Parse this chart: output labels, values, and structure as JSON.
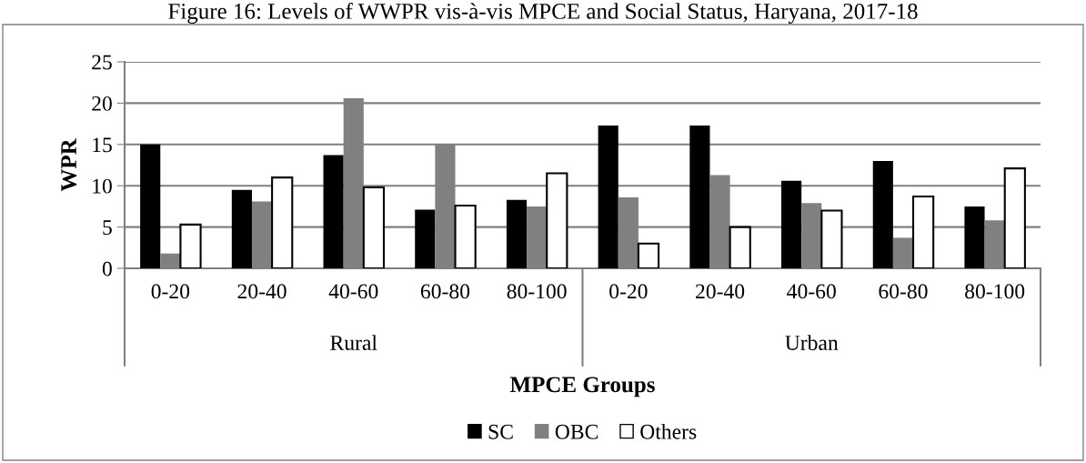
{
  "chart_data": {
    "type": "bar",
    "title": "Figure 16: Levels of WWPR vis-à-vis MPCE and Social Status, Haryana, 2017-18",
    "xlabel": "MPCE Groups",
    "ylabel": "WPR",
    "categories": [
      "0-20",
      "20-40",
      "40-60",
      "60-80",
      "80-100",
      "0-20",
      "20-40",
      "40-60",
      "60-80",
      "80-100"
    ],
    "annotations": [
      "Rural",
      "Urban"
    ],
    "series": [
      {
        "name": "SC",
        "color": "#000000",
        "values": [
          15,
          9.5,
          13.7,
          7.1,
          8.3,
          17.3,
          17.3,
          10.6,
          13,
          7.5
        ]
      },
      {
        "name": "OBC",
        "color": "#808080",
        "values": [
          1.8,
          8.1,
          20.6,
          15,
          7.5,
          8.6,
          11.3,
          7.9,
          3.7,
          5.8
        ]
      },
      {
        "name": "Others",
        "color": "#ffffff",
        "values": [
          5.3,
          11,
          9.8,
          7.6,
          11.5,
          3,
          5,
          7,
          8.7,
          12.1
        ]
      }
    ],
    "ylim": [
      0,
      25
    ],
    "yticks": [
      0,
      5,
      10,
      15,
      20,
      25
    ],
    "grid": "y",
    "legend": "bottom"
  }
}
